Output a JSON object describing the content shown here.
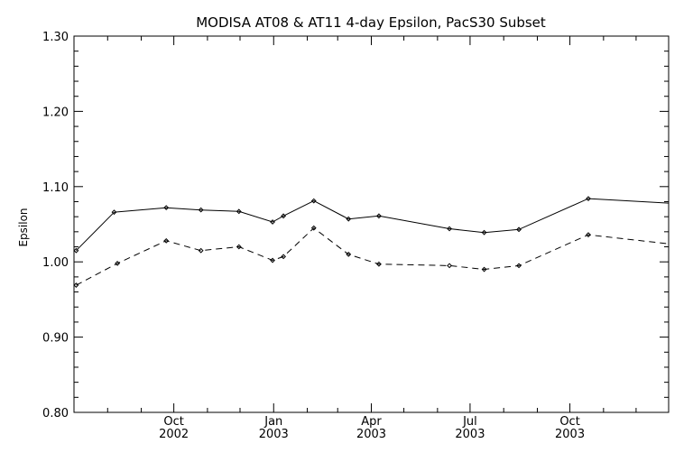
{
  "chart_data": {
    "type": "line",
    "title": "MODISA AT08 & AT11 4-day Epsilon, PacS30 Subset",
    "ylabel": "Epsilon",
    "xlabel": "",
    "ylim": [
      0.8,
      1.3
    ],
    "xlim": [
      "2002-07-01",
      "2003-12-31"
    ],
    "y_ticks": [
      "0.80",
      "0.90",
      "1.00",
      "1.10",
      "1.20",
      "1.30"
    ],
    "x_ticks": [
      {
        "date": "2002-10-01",
        "label_top": "Oct",
        "label_bottom": "2002"
      },
      {
        "date": "2003-01-01",
        "label_top": "Jan",
        "label_bottom": "2003"
      },
      {
        "date": "2003-04-01",
        "label_top": "Apr",
        "label_bottom": "2003"
      },
      {
        "date": "2003-07-01",
        "label_top": "Jul",
        "label_bottom": "2003"
      },
      {
        "date": "2003-10-01",
        "label_top": "Oct",
        "label_bottom": "2003"
      }
    ],
    "minor_x_ticks": [
      "2002-08-01",
      "2002-09-01",
      "2002-11-01",
      "2002-12-01",
      "2003-02-01",
      "2003-03-01",
      "2003-05-01",
      "2003-06-01",
      "2003-08-01",
      "2003-09-01",
      "2003-11-01",
      "2003-12-01"
    ],
    "series": [
      {
        "line_style": "solid",
        "x": [
          "2002-07-03",
          "2002-08-07",
          "2002-09-24",
          "2002-10-26",
          "2002-11-30",
          "2002-12-31",
          "2003-01-10",
          "2003-02-07",
          "2003-03-11",
          "2003-04-08",
          "2003-06-12",
          "2003-07-14",
          "2003-08-15",
          "2003-10-18",
          "2003-12-31"
        ],
        "y": [
          1.015,
          1.066,
          1.072,
          1.069,
          1.067,
          1.053,
          1.061,
          1.081,
          1.057,
          1.061,
          1.044,
          1.039,
          1.043,
          1.084,
          1.078
        ]
      },
      {
        "line_style": "dashed",
        "x": [
          "2002-07-03",
          "2002-08-10",
          "2002-09-24",
          "2002-10-26",
          "2002-11-30",
          "2002-12-31",
          "2003-01-10",
          "2003-02-07",
          "2003-03-11",
          "2003-04-08",
          "2003-06-12",
          "2003-07-14",
          "2003-08-15",
          "2003-10-18",
          "2003-12-31"
        ],
        "y": [
          0.969,
          0.998,
          1.028,
          1.015,
          1.02,
          1.002,
          1.007,
          1.045,
          1.01,
          0.997,
          0.995,
          0.99,
          0.995,
          1.036,
          1.024
        ]
      }
    ],
    "grid": false,
    "legend": "none"
  }
}
